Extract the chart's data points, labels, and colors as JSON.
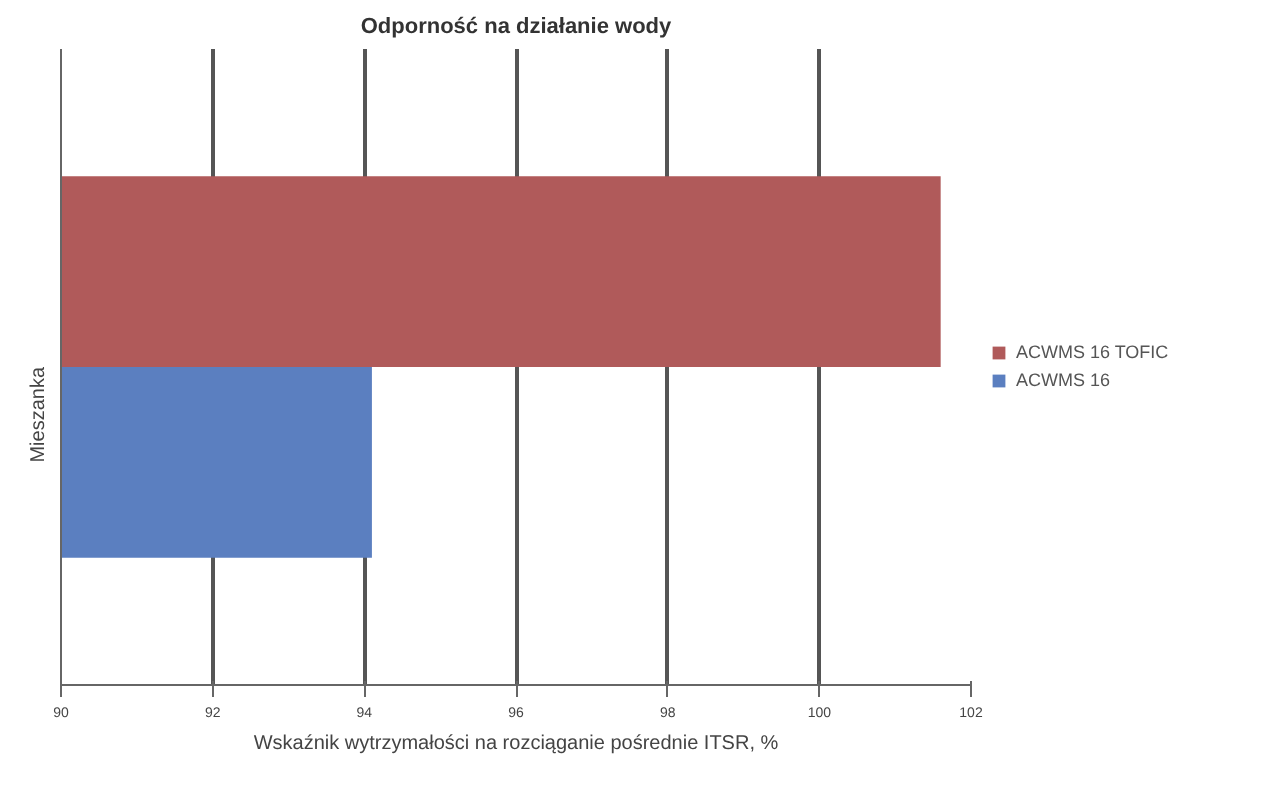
{
  "chart_data": {
    "type": "bar",
    "orientation": "horizontal",
    "title": "Odporność na działanie wody",
    "xlabel": "Wskaźnik wytrzymałości na rozciąganie pośrednie ITSR, %",
    "categories": [
      "Mieszanka"
    ],
    "series": [
      {
        "name": "ACWMS 16 TOFIC",
        "color": "#b05a5a",
        "values": [
          101.6
        ]
      },
      {
        "name": "ACWMS 16",
        "color": "#5b7fc0",
        "values": [
          94.1
        ]
      }
    ],
    "xlim": [
      90,
      102
    ],
    "xticks": [
      90,
      92,
      94,
      96,
      98,
      100,
      102
    ],
    "grid": "x",
    "legend": "right"
  }
}
